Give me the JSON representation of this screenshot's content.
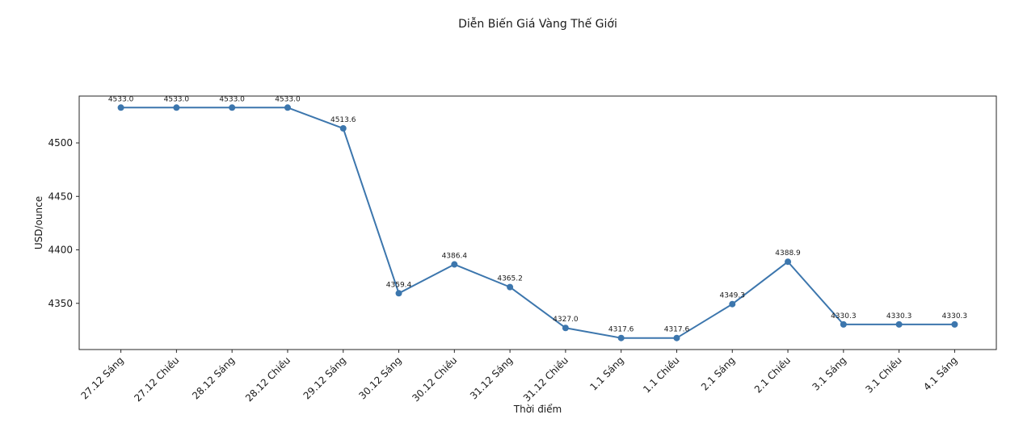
{
  "chart_data": {
    "type": "line",
    "title": "Diễn Biến Giá Vàng Thế Giới",
    "xlabel": "Thời điểm",
    "ylabel": "USD/ounce",
    "categories": [
      "27.12 Sáng",
      "27.12 Chiều",
      "28.12 Sáng",
      "28.12 Chiều",
      "29.12 Sáng",
      "30.12 Sáng",
      "30.12 Chiều",
      "31.12 Sáng",
      "31.12 Chiều",
      "1.1 Sáng",
      "1.1 Chiều",
      "2.1 Sáng",
      "2.1 Chiều",
      "3.1 Sáng",
      "3.1 Chiều",
      "4.1 Sáng"
    ],
    "values": [
      4533.0,
      4533.0,
      4533.0,
      4533.0,
      4513.6,
      4359.4,
      4386.4,
      4365.2,
      4327.0,
      4317.6,
      4317.6,
      4349.3,
      4388.9,
      4330.3,
      4330.3,
      4330.3
    ],
    "data_labels": [
      "4533.0",
      "4533.0",
      "4533.0",
      "4533.0",
      "4513.6",
      "4359.4",
      "4386.4",
      "4365.2",
      "4327.0",
      "4317.6",
      "4317.6",
      "4349.3",
      "4388.9",
      "4330.3",
      "4330.3",
      "4330.3"
    ],
    "yticks": [
      4350,
      4400,
      4450,
      4500
    ],
    "ylim": [
      4306.8,
      4543.8
    ],
    "grid": false,
    "legend": null,
    "line_color": "#3c76ad",
    "marker": "circle",
    "spine_color": "#262626",
    "text_color": "#1a1a1a"
  }
}
